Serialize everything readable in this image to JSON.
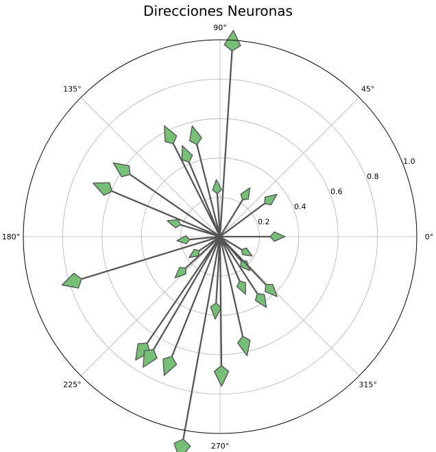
{
  "chart_data": {
    "type": "polar-arrows",
    "title": "Direcciones Neuronas",
    "angle_ticks": [
      "0°",
      "45°",
      "90°",
      "135°",
      "180°",
      "225°",
      "270°",
      "315°"
    ],
    "radial_ticks": [
      "0.2",
      "0.4",
      "0.6",
      "0.8",
      "1.0"
    ],
    "rlim": [
      0,
      1.0
    ],
    "grid": true,
    "arrow_color": "#77bf77",
    "arrow_edge_color": "#555555",
    "arrows": [
      {
        "angle": 86.3,
        "r": 1.05
      },
      {
        "angle": 0.0,
        "r": 0.33
      },
      {
        "angle": 36.6,
        "r": 0.36
      },
      {
        "angle": 58.5,
        "r": 0.29
      },
      {
        "angle": 93.7,
        "r": 0.29
      },
      {
        "angle": 104.1,
        "r": 0.58
      },
      {
        "angle": 112.6,
        "r": 0.5
      },
      {
        "angle": 116.7,
        "r": 0.63
      },
      {
        "angle": 145.4,
        "r": 0.66
      },
      {
        "angle": 157.2,
        "r": 0.7
      },
      {
        "angle": 163.4,
        "r": 0.28
      },
      {
        "angle": 185.4,
        "r": 0.22
      },
      {
        "angle": 197.0,
        "r": 0.84
      },
      {
        "angle": 214.0,
        "r": 0.19
      },
      {
        "angle": 222.4,
        "r": 0.31
      },
      {
        "angle": 235.6,
        "r": 0.76
      },
      {
        "angle": 239.5,
        "r": 0.77
      },
      {
        "angle": 248.1,
        "r": 0.76
      },
      {
        "angle": 259.7,
        "r": 1.15
      },
      {
        "angle": 266.6,
        "r": 0.42
      },
      {
        "angle": 270.6,
        "r": 0.76
      },
      {
        "angle": 282.8,
        "r": 0.62
      },
      {
        "angle": 293.8,
        "r": 0.32
      },
      {
        "angle": 303.2,
        "r": 0.43
      },
      {
        "angle": 311.1,
        "r": 0.23
      },
      {
        "angle": 313.6,
        "r": 0.42
      },
      {
        "angle": 328.9,
        "r": 0.19
      }
    ]
  }
}
